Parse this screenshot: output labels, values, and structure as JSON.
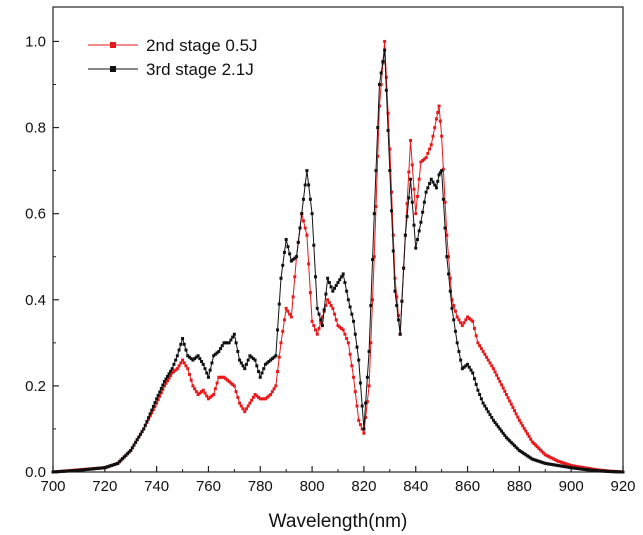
{
  "chart_data": {
    "type": "line",
    "title": "",
    "xlabel": "Wavelength(nm)",
    "ylabel": "",
    "xlim": [
      700,
      920
    ],
    "ylim": [
      0,
      1.08
    ],
    "x_ticks": [
      700,
      720,
      740,
      760,
      780,
      800,
      820,
      840,
      860,
      880,
      900,
      920
    ],
    "y_ticks": [
      0.0,
      0.2,
      0.4,
      0.6,
      0.8,
      1.0
    ],
    "x_tick_labels": [
      "700",
      "720",
      "740",
      "760",
      "780",
      "800",
      "820",
      "840",
      "860",
      "880",
      "900",
      "920"
    ],
    "y_tick_labels": [
      "0.0",
      "0.2",
      "0.4",
      "0.6",
      "0.8",
      "1.0"
    ],
    "grid": false,
    "legend_position": "top-left",
    "series": [
      {
        "name": "2nd stage 0.5J",
        "color": "#e8191c",
        "marker": "square",
        "x": [
          700,
          710,
          720,
          725,
          730,
          735,
          740,
          743,
          746,
          748,
          750,
          752,
          754,
          756,
          758,
          760,
          762,
          764,
          766,
          768,
          770,
          772,
          774,
          776,
          778,
          780,
          782,
          784,
          786,
          788,
          790,
          792,
          794,
          796,
          798,
          800,
          802,
          804,
          806,
          808,
          810,
          812,
          814,
          816,
          818,
          820,
          822,
          824,
          826,
          828,
          830,
          832,
          834,
          836,
          838,
          840,
          842,
          844,
          846,
          848,
          849,
          850,
          852,
          854,
          856,
          858,
          860,
          862,
          864,
          866,
          868,
          870,
          875,
          880,
          885,
          890,
          895,
          900,
          905,
          910,
          915,
          920
        ],
        "y": [
          0.0,
          0.005,
          0.01,
          0.02,
          0.05,
          0.1,
          0.16,
          0.2,
          0.23,
          0.24,
          0.26,
          0.24,
          0.2,
          0.18,
          0.19,
          0.17,
          0.18,
          0.22,
          0.22,
          0.21,
          0.2,
          0.16,
          0.14,
          0.16,
          0.18,
          0.17,
          0.17,
          0.18,
          0.2,
          0.3,
          0.38,
          0.36,
          0.5,
          0.6,
          0.55,
          0.35,
          0.32,
          0.36,
          0.4,
          0.38,
          0.34,
          0.33,
          0.3,
          0.22,
          0.12,
          0.09,
          0.2,
          0.5,
          0.85,
          1.0,
          0.75,
          0.45,
          0.32,
          0.55,
          0.77,
          0.6,
          0.72,
          0.73,
          0.76,
          0.82,
          0.85,
          0.78,
          0.55,
          0.4,
          0.36,
          0.34,
          0.36,
          0.35,
          0.3,
          0.28,
          0.26,
          0.24,
          0.18,
          0.12,
          0.07,
          0.04,
          0.025,
          0.015,
          0.01,
          0.005,
          0.002,
          0.0
        ]
      },
      {
        "name": "3rd stage 2.1J",
        "color": "#111111",
        "marker": "square",
        "x": [
          700,
          710,
          720,
          725,
          730,
          735,
          740,
          743,
          746,
          748,
          750,
          752,
          754,
          756,
          758,
          760,
          762,
          764,
          766,
          768,
          770,
          772,
          774,
          776,
          778,
          780,
          782,
          784,
          786,
          788,
          790,
          792,
          794,
          796,
          798,
          800,
          802,
          804,
          806,
          808,
          810,
          812,
          814,
          816,
          818,
          820,
          822,
          824,
          826,
          828,
          830,
          832,
          834,
          836,
          838,
          840,
          842,
          844,
          846,
          848,
          849,
          850,
          852,
          854,
          856,
          858,
          860,
          862,
          864,
          866,
          868,
          870,
          875,
          880,
          885,
          890,
          895,
          900,
          905,
          910,
          915,
          920
        ],
        "y": [
          0.0,
          0.004,
          0.01,
          0.02,
          0.05,
          0.1,
          0.17,
          0.21,
          0.24,
          0.27,
          0.31,
          0.27,
          0.26,
          0.27,
          0.25,
          0.22,
          0.27,
          0.28,
          0.3,
          0.3,
          0.32,
          0.26,
          0.24,
          0.27,
          0.26,
          0.22,
          0.25,
          0.26,
          0.27,
          0.45,
          0.54,
          0.49,
          0.5,
          0.6,
          0.7,
          0.6,
          0.38,
          0.34,
          0.45,
          0.42,
          0.44,
          0.46,
          0.4,
          0.35,
          0.26,
          0.1,
          0.28,
          0.6,
          0.9,
          0.98,
          0.7,
          0.42,
          0.32,
          0.55,
          0.68,
          0.52,
          0.58,
          0.65,
          0.68,
          0.66,
          0.69,
          0.7,
          0.5,
          0.38,
          0.3,
          0.24,
          0.25,
          0.23,
          0.19,
          0.16,
          0.14,
          0.12,
          0.08,
          0.05,
          0.03,
          0.02,
          0.015,
          0.01,
          0.006,
          0.003,
          0.001,
          0.0
        ]
      }
    ]
  }
}
